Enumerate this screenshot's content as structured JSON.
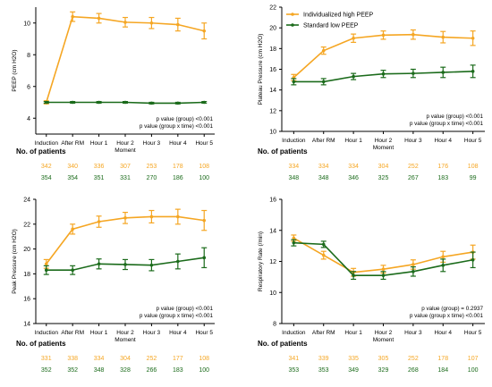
{
  "colors": {
    "high": "#F5A623",
    "low": "#1B6B1B",
    "axis": "#000000",
    "text": "#000000"
  },
  "legend": {
    "high_label": "Individualized high PEEP",
    "low_label": "Standard low PEEP"
  },
  "chart_data": [
    {
      "type": "line",
      "categories": [
        "Induction",
        "After RM",
        "Hour 1",
        "Hour 2\nMoment",
        "Hour 3",
        "Hour 4",
        "Hour 5"
      ],
      "ylabel": "PEEP (cm H2O)",
      "ylim": [
        3,
        11
      ],
      "yticks": [
        4,
        6,
        8,
        10
      ],
      "series": [
        {
          "name": "Individualized high PEEP",
          "values": [
            5.0,
            10.4,
            10.3,
            10.05,
            10.0,
            9.9,
            9.5
          ],
          "errors": [
            0.1,
            0.3,
            0.3,
            0.3,
            0.35,
            0.4,
            0.5
          ]
        },
        {
          "name": "Standard low PEEP",
          "values": [
            5.0,
            5.0,
            5.0,
            5.0,
            4.95,
            4.95,
            5.0
          ],
          "errors": [
            0.05,
            0.05,
            0.05,
            0.05,
            0.05,
            0.05,
            0.05
          ]
        }
      ],
      "annotations": [
        "p value (group) <0.001",
        "p value (group x time) <0.001"
      ],
      "patients_title": "No. of patients",
      "patients_high": [
        "342",
        "340",
        "336",
        "307",
        "253",
        "178",
        "108"
      ],
      "patients_low": [
        "354",
        "354",
        "351",
        "331",
        "270",
        "186",
        "100"
      ]
    },
    {
      "type": "line",
      "categories": [
        "Induction",
        "After RM",
        "Hour 1",
        "Hour 2\nMoment",
        "Hour 3",
        "Hour 4",
        "Hour 5"
      ],
      "ylabel": "Plateau Pressure (cm H2O)",
      "ylim": [
        10,
        22
      ],
      "yticks": [
        10,
        12,
        14,
        16,
        18,
        20,
        22
      ],
      "series": [
        {
          "name": "Individualized high PEEP",
          "values": [
            15.2,
            17.8,
            19.0,
            19.3,
            19.35,
            19.1,
            19.0
          ],
          "errors": [
            0.3,
            0.35,
            0.4,
            0.4,
            0.45,
            0.55,
            0.7
          ]
        },
        {
          "name": "Standard low PEEP",
          "values": [
            14.8,
            14.8,
            15.3,
            15.55,
            15.6,
            15.7,
            15.8
          ],
          "errors": [
            0.3,
            0.3,
            0.3,
            0.35,
            0.4,
            0.5,
            0.6
          ]
        }
      ],
      "annotations": [
        "p value (group) <0.001",
        "p value (group x time) <0.001"
      ],
      "patients_title": "No. of patients",
      "patients_high": [
        "334",
        "334",
        "334",
        "304",
        "252",
        "176",
        "108"
      ],
      "patients_low": [
        "348",
        "348",
        "346",
        "325",
        "267",
        "183",
        "99"
      ]
    },
    {
      "type": "line",
      "categories": [
        "Induction",
        "After RM",
        "Hour 1",
        "Hour 2\nMoment",
        "Hour 3",
        "Hour 4",
        "Hour 5"
      ],
      "ylabel": "Peak Pressure (cm H2O)",
      "ylim": [
        14,
        24
      ],
      "yticks": [
        14,
        16,
        18,
        20,
        22,
        24
      ],
      "series": [
        {
          "name": "Individualized high PEEP",
          "values": [
            18.8,
            21.6,
            22.2,
            22.5,
            22.6,
            22.6,
            22.3
          ],
          "errors": [
            0.35,
            0.4,
            0.45,
            0.45,
            0.5,
            0.6,
            0.8
          ]
        },
        {
          "name": "Standard low PEEP",
          "values": [
            18.3,
            18.3,
            18.8,
            18.75,
            18.7,
            19.0,
            19.3
          ],
          "errors": [
            0.35,
            0.35,
            0.4,
            0.4,
            0.45,
            0.6,
            0.8
          ]
        }
      ],
      "annotations": [
        "p value (group) <0.001",
        "p value (group x time) <0.001"
      ],
      "patients_title": "No. of patients",
      "patients_high": [
        "331",
        "338",
        "334",
        "304",
        "252",
        "177",
        "108"
      ],
      "patients_low": [
        "352",
        "352",
        "348",
        "328",
        "266",
        "183",
        "100"
      ]
    },
    {
      "type": "line",
      "categories": [
        "Induction",
        "After RM",
        "Hour 1",
        "Hour 2\nMoment",
        "Hour 3",
        "Hour 4",
        "Hour 5"
      ],
      "ylabel": "Respiratory Rate (/min)",
      "ylim": [
        8,
        16
      ],
      "yticks": [
        8,
        10,
        12,
        14,
        16
      ],
      "series": [
        {
          "name": "Individualized high PEEP",
          "values": [
            13.5,
            12.4,
            11.3,
            11.5,
            11.8,
            12.3,
            12.6
          ],
          "errors": [
            0.2,
            0.25,
            0.25,
            0.25,
            0.3,
            0.35,
            0.45
          ]
        },
        {
          "name": "Standard low PEEP",
          "values": [
            13.2,
            13.1,
            11.1,
            11.1,
            11.35,
            11.75,
            12.1
          ],
          "errors": [
            0.2,
            0.2,
            0.25,
            0.25,
            0.3,
            0.4,
            0.5
          ]
        }
      ],
      "annotations": [
        "p value (group) = 0.2937",
        "p value (group x time) <0.001"
      ],
      "patients_title": "No. of patients",
      "patients_high": [
        "341",
        "339",
        "335",
        "305",
        "252",
        "178",
        "107"
      ],
      "patients_low": [
        "353",
        "353",
        "349",
        "329",
        "268",
        "184",
        "100"
      ]
    }
  ]
}
